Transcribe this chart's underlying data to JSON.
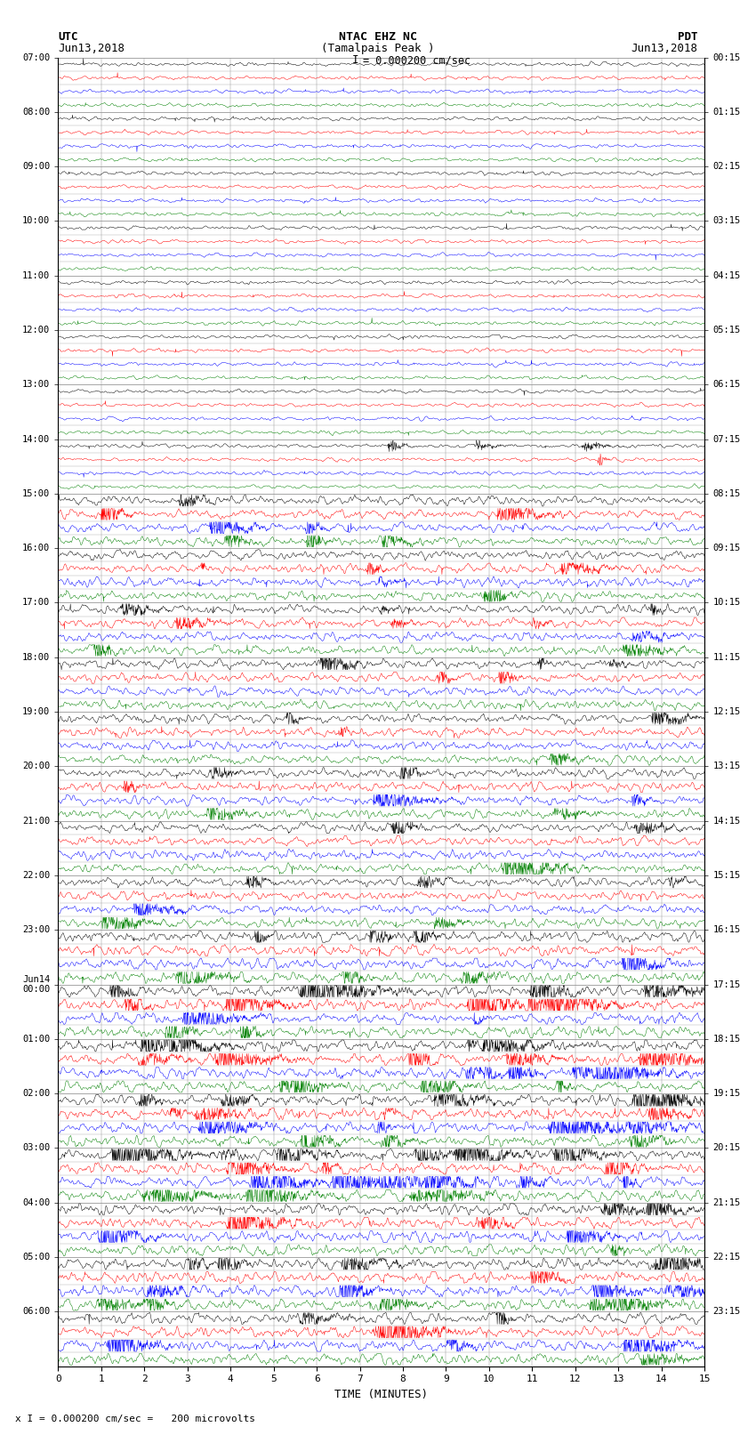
{
  "title_line1": "NTAC EHZ NC",
  "title_line2": "(Tamalpais Peak )",
  "scale_label": "I = 0.000200 cm/sec",
  "left_header": "UTC",
  "left_date": "Jun13,2018",
  "right_header": "PDT",
  "right_date": "Jun13,2018",
  "footer": "x I = 0.000200 cm/sec =   200 microvolts",
  "xlabel": "TIME (MINUTES)",
  "bg_color": "#ffffff",
  "trace_colors": [
    "black",
    "red",
    "blue",
    "green"
  ],
  "grid_color": "#999999",
  "num_rows": 96,
  "minutes_per_row": 15,
  "samples_per_row": 1800,
  "left_labels_hours": [
    "07:00",
    "08:00",
    "09:00",
    "10:00",
    "11:00",
    "12:00",
    "13:00",
    "14:00",
    "15:00",
    "16:00",
    "17:00",
    "18:00",
    "19:00",
    "20:00",
    "21:00",
    "22:00",
    "23:00",
    "Jun14\n00:00",
    "01:00",
    "02:00",
    "03:00",
    "04:00",
    "05:00",
    "06:00"
  ],
  "right_labels_hours": [
    "00:15",
    "01:15",
    "02:15",
    "03:15",
    "04:15",
    "05:15",
    "06:15",
    "07:15",
    "08:15",
    "09:15",
    "10:15",
    "11:15",
    "12:15",
    "13:15",
    "14:15",
    "15:15",
    "16:15",
    "17:15",
    "18:15",
    "19:15",
    "20:15",
    "21:15",
    "22:15",
    "23:15"
  ],
  "base_noise_amp": 0.06,
  "medium_noise_amp": 0.18,
  "high_noise_amp": 0.35,
  "noise_seed": 12345
}
